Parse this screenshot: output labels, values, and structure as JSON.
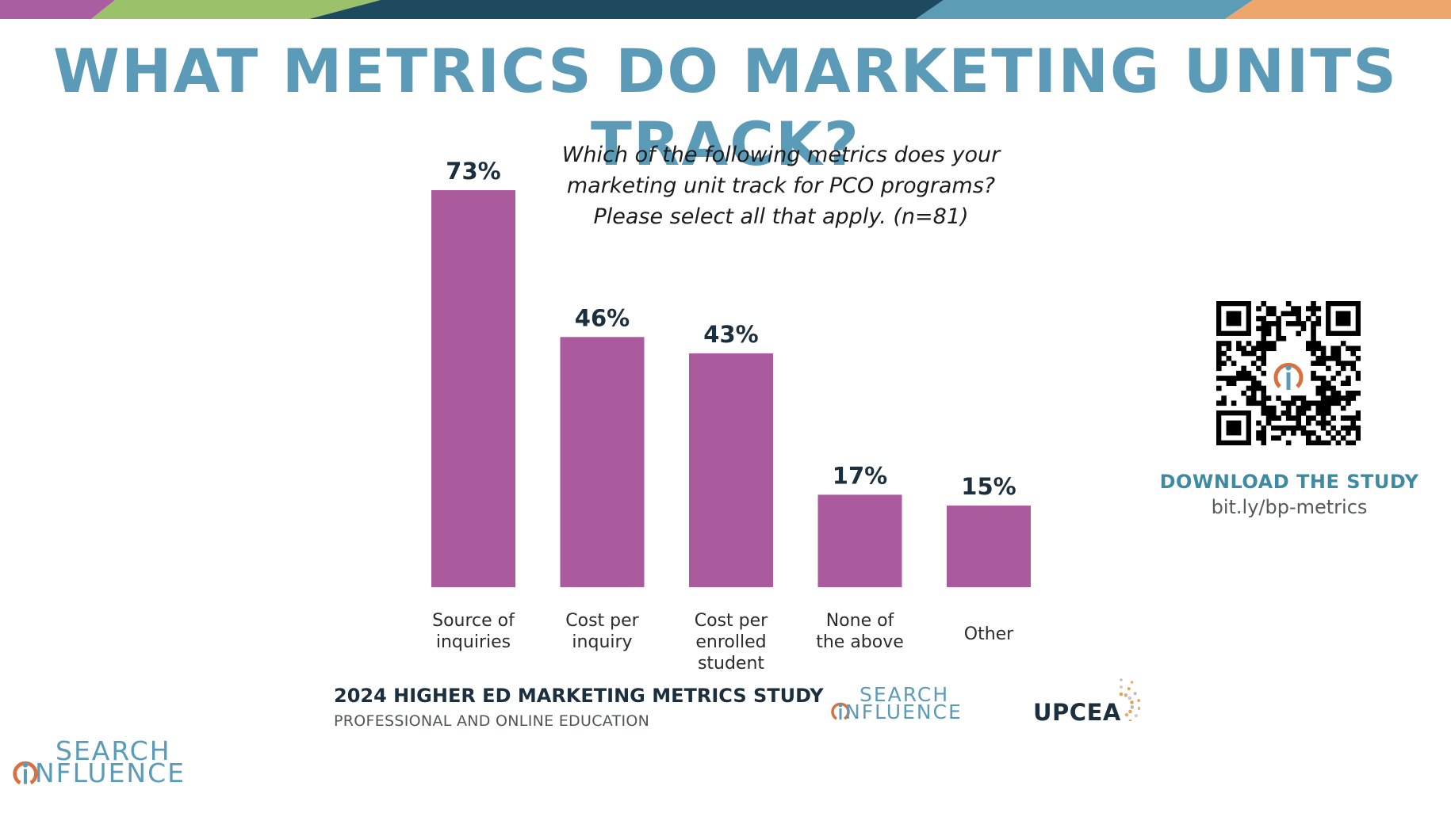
{
  "title": "WHAT METRICS DO MARKETING UNITS TRACK?",
  "colors": {
    "title": "#5b9bb8",
    "bar": "#ab5b9d",
    "value_label": "#1b2f3f",
    "band": [
      "#a85ea0",
      "#9bc16a",
      "#1e4a5f",
      "#5c9cb6",
      "#efa66c"
    ]
  },
  "question_lines": [
    "Which of the following metrics does your",
    "marketing unit track for PCO programs?",
    "Please select all that apply. (n=81)"
  ],
  "chart_data": {
    "type": "bar",
    "categories": [
      [
        "Source of",
        "inquiries"
      ],
      [
        "Cost per",
        "inquiry"
      ],
      [
        "Cost per",
        "enrolled",
        "student"
      ],
      [
        "None of",
        "the above"
      ],
      [
        "Other"
      ]
    ],
    "values": [
      73,
      46,
      43,
      17,
      15
    ],
    "value_labels": [
      "73%",
      "46%",
      "43%",
      "17%",
      "15%"
    ],
    "unit": "%",
    "ylim": [
      0,
      73
    ],
    "grid": false,
    "legend": "none"
  },
  "download": {
    "title": "DOWNLOAD THE STUDY",
    "url": "bit.ly/bp-metrics"
  },
  "footer": {
    "study_title": "2024 HIGHER ED MARKETING METRICS STUDY",
    "study_subtitle": "PROFESSIONAL AND ONLINE EDUCATION"
  },
  "logos": {
    "search_influence": {
      "line1": "SEARCH",
      "line2": "NFLUENCE",
      "icon": "search-influence-i-icon"
    },
    "upcea": {
      "text": "UPCEA",
      "icon": "upcea-dots-icon"
    }
  },
  "qr_icon": "qr-code-icon"
}
